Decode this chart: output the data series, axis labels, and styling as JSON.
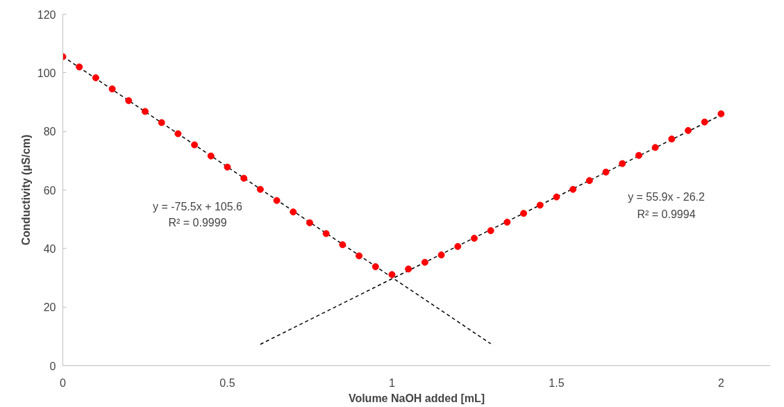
{
  "chart_data": {
    "type": "scatter",
    "xlabel": "Volume NaOH added [mL]",
    "ylabel": "Conductivity (µS/cm)",
    "xlim": [
      0,
      2.15
    ],
    "xticks": [
      0,
      0.5,
      1,
      1.5,
      2
    ],
    "ylim": [
      0,
      120
    ],
    "yticks": [
      0,
      20,
      40,
      60,
      80,
      100,
      120
    ],
    "grid": false,
    "series": [
      {
        "marker": "circle",
        "color": "#ff0000",
        "x": [
          0,
          0.05,
          0.1,
          0.15,
          0.2,
          0.25,
          0.3,
          0.35,
          0.4,
          0.45,
          0.5,
          0.55,
          0.6,
          0.65,
          0.7,
          0.75,
          0.8,
          0.85,
          0.9,
          0.95,
          1.0,
          1.05,
          1.1,
          1.15,
          1.2,
          1.25,
          1.3,
          1.35,
          1.4,
          1.45,
          1.5,
          1.55,
          1.6,
          1.65,
          1.7,
          1.75,
          1.8,
          1.85,
          1.9,
          1.95,
          2.0
        ],
        "values": [
          105.5,
          102,
          98.3,
          94.5,
          90.5,
          86.8,
          83,
          79.2,
          75.4,
          71.6,
          67.8,
          64,
          60.2,
          56.4,
          52.5,
          48.8,
          45.1,
          41.3,
          37.5,
          33.8,
          31.1,
          33,
          35.3,
          37.8,
          40.7,
          43.5,
          46.1,
          49,
          52,
          54.8,
          57.6,
          60.2,
          63.2,
          66.1,
          69,
          71.8,
          74.5,
          77.4,
          80.3,
          83.2,
          86
        ]
      },
      {
        "type": "line",
        "line_style": "dashed",
        "color": "#000000",
        "x": [
          0,
          1.3
        ],
        "values": [
          105.6,
          7.5
        ]
      },
      {
        "type": "line",
        "line_style": "dashed",
        "color": "#000000",
        "x": [
          0.6,
          2.0
        ],
        "values": [
          7.3,
          85.6
        ]
      }
    ],
    "annotations": [
      "y = -75.5x + 105.6",
      "R² = 0.9999",
      "y = 55.9x - 26.2",
      "R² = 0.9994"
    ]
  }
}
